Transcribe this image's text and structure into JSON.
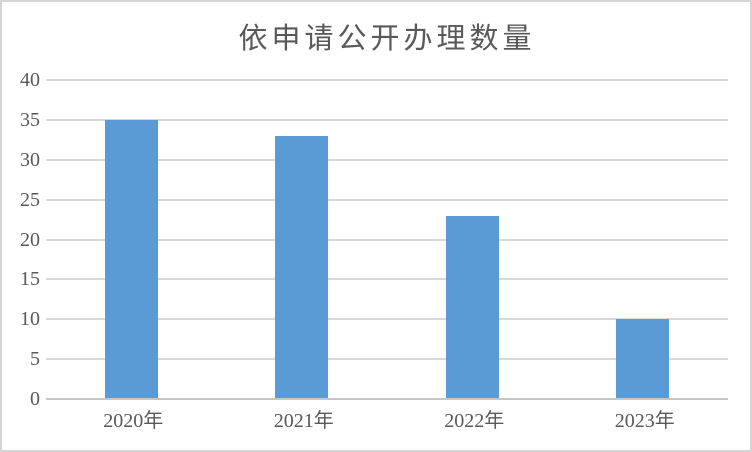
{
  "chart_data": {
    "type": "bar",
    "title": "依申请公开办理数量",
    "categories": [
      "2020年",
      "2021年",
      "2022年",
      "2023年"
    ],
    "values": [
      35,
      33,
      23,
      10
    ],
    "xlabel": "",
    "ylabel": "",
    "ylim": [
      0,
      40
    ],
    "yticks": [
      0,
      5,
      10,
      15,
      20,
      25,
      30,
      35,
      40
    ],
    "grid": "horizontal",
    "legend": "none",
    "bar_color": "#5B9BD5",
    "gridline_color": "#D9D9D9",
    "axis_line_color": "#C6C6C6",
    "text_color": "#595959",
    "frame_color": "#D5D5D5",
    "background_color": "#FFFFFF"
  }
}
